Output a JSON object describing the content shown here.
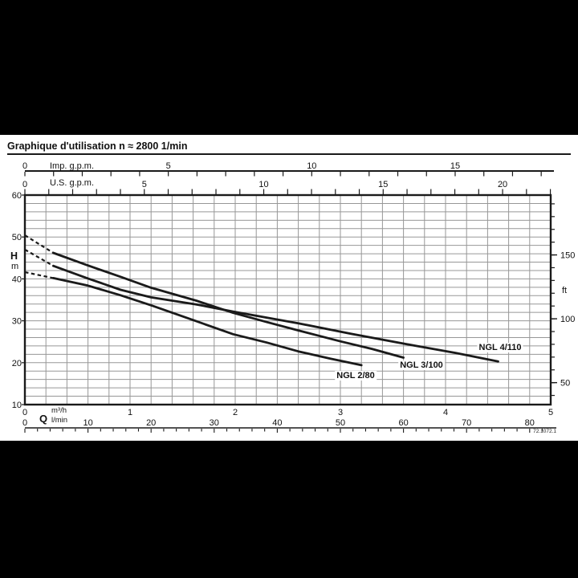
{
  "page": {
    "title": "Graphique d'utilisation n ≈ 2800 1/min",
    "doc_number": "72.1072.1"
  },
  "chart_data": {
    "type": "line",
    "title": "Graphique d'utilisation n ≈ 2800 1/min",
    "grid": "on",
    "x_axes": [
      {
        "id": "imp_gpm",
        "label": "Imp. g.p.m.",
        "tick_labels": [
          0,
          5,
          10,
          15
        ],
        "minor_step": 1
      },
      {
        "id": "us_gpm",
        "label": "U.S. g.p.m.",
        "tick_labels": [
          0,
          5,
          10,
          15,
          20
        ],
        "minor_step": 1
      },
      {
        "id": "m3h",
        "label": "m³/h",
        "tick_labels": [
          0,
          1,
          2,
          3,
          4,
          5
        ],
        "range": [
          0,
          5
        ]
      },
      {
        "id": "lmin",
        "label": "l/min",
        "tick_labels": [
          0,
          10,
          20,
          30,
          40,
          50,
          60,
          70,
          80
        ],
        "minor_step": 2
      }
    ],
    "y_axes": [
      {
        "id": "H_m",
        "label": "H",
        "unit": "m",
        "tick_labels": [
          10,
          20,
          30,
          40,
          50,
          60
        ],
        "range": [
          10,
          60
        ],
        "grid_step": 2
      },
      {
        "id": "ft",
        "label": "ft",
        "tick_labels": [
          50,
          100,
          150
        ],
        "minor_step": 10
      }
    ],
    "q_label": "Q",
    "series": [
      {
        "name": "NGL 3/100",
        "dash": [
          [
            0,
            50.4
          ],
          [
            0.27,
            46.2
          ]
        ],
        "points": [
          [
            0.27,
            46.2
          ],
          [
            0.6,
            43.2
          ],
          [
            0.91,
            40.5
          ],
          [
            1.2,
            37.9
          ],
          [
            1.63,
            34.8
          ],
          [
            1.98,
            31.9
          ],
          [
            2.3,
            29.7
          ],
          [
            2.6,
            27.7
          ],
          [
            3.0,
            25.1
          ],
          [
            3.3,
            23.3
          ],
          [
            3.6,
            21.2
          ]
        ]
      },
      {
        "name": "NGL 4/110",
        "dash": [
          [
            0,
            47.0
          ],
          [
            0.27,
            43.1
          ]
        ],
        "points": [
          [
            0.27,
            43.1
          ],
          [
            0.6,
            40.1
          ],
          [
            0.91,
            37.4
          ],
          [
            1.2,
            35.6
          ],
          [
            1.63,
            33.9
          ],
          [
            1.98,
            32.2
          ],
          [
            2.6,
            29.4
          ],
          [
            3.1,
            26.9
          ],
          [
            3.7,
            24.1
          ],
          [
            4.1,
            22.3
          ],
          [
            4.5,
            20.3
          ]
        ]
      },
      {
        "name": "NGL 2/80",
        "dash": [
          [
            0,
            41.6
          ],
          [
            0.27,
            40.2
          ]
        ],
        "points": [
          [
            0.27,
            40.2
          ],
          [
            0.6,
            38.4
          ],
          [
            0.91,
            36.1
          ],
          [
            1.2,
            33.7
          ],
          [
            1.63,
            29.9
          ],
          [
            1.98,
            26.8
          ],
          [
            2.3,
            24.8
          ],
          [
            2.6,
            22.7
          ],
          [
            2.9,
            21.0
          ],
          [
            3.2,
            19.4
          ]
        ]
      }
    ],
    "series_labels": [
      {
        "text": "NGL 2/80"
      },
      {
        "text": "NGL 3/100"
      },
      {
        "text": "NGL 4/110"
      }
    ],
    "colors": {
      "curve": "#1a1a1a",
      "grid": "#979797",
      "axis": "#1a1a1a"
    }
  }
}
